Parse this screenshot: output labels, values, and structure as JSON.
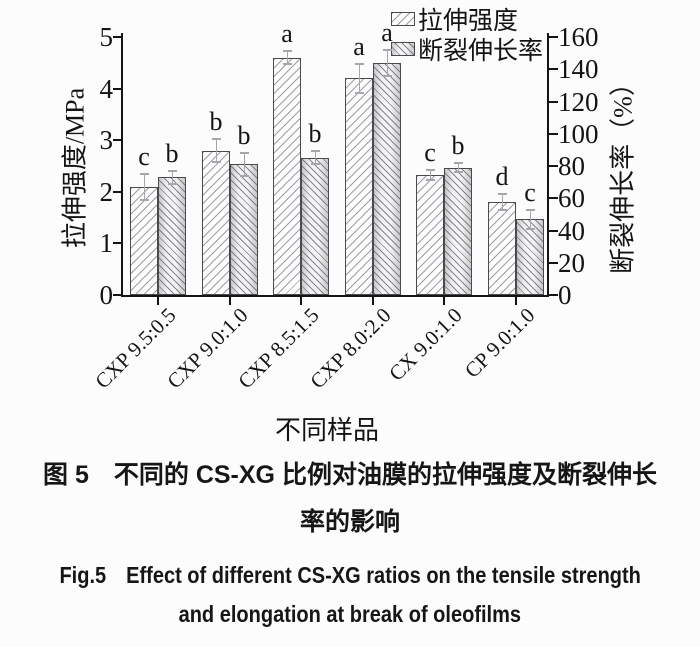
{
  "chart_data": {
    "type": "bar",
    "categories": [
      "CXP 9.5:0.5",
      "CXP 9.0:1.0",
      "CXP 8.5:1.5",
      "CXP 8.0:2.0",
      "CX 9.0:1.0",
      "CP 9.0:1.0"
    ],
    "series": [
      {
        "name": "拉伸强度",
        "axis": "left",
        "unit": "MPa",
        "hatch": "/",
        "values": [
          2.1,
          2.8,
          4.6,
          4.2,
          2.33,
          1.8
        ],
        "errors": [
          0.25,
          0.22,
          0.12,
          0.28,
          0.1,
          0.15
        ],
        "sig_letters": [
          "c",
          "b",
          "a",
          "a",
          "c",
          "d"
        ]
      },
      {
        "name": "断裂伸长率",
        "axis": "right",
        "unit": "%",
        "hatch": "\\",
        "values": [
          73,
          81,
          85,
          144,
          79,
          47
        ],
        "errors": [
          4,
          7,
          4,
          8,
          3,
          6
        ],
        "sig_letters": [
          "b",
          "b",
          "b",
          "a",
          "b",
          "c"
        ]
      }
    ],
    "left_axis": {
      "label": "拉伸强度/MPa",
      "min": 0,
      "max": 5,
      "ticks": [
        0,
        1,
        2,
        3,
        4,
        5
      ]
    },
    "right_axis": {
      "label": "断裂伸长率（%）",
      "min": 0,
      "max": 160,
      "ticks": [
        0,
        20,
        40,
        60,
        80,
        100,
        120,
        140,
        160
      ]
    },
    "xlabel": "不同样品",
    "legend_position": "top-right",
    "grid": false
  },
  "caption": {
    "cn_line1": "图 5　不同的 CS-XG 比例对油膜的拉伸强度及断裂伸长",
    "cn_line2": "率的影响",
    "en_line1": "Fig.5　Effect of different CS-XG ratios on the tensile strength",
    "en_line2": "and elongation at break of oleofilms"
  }
}
